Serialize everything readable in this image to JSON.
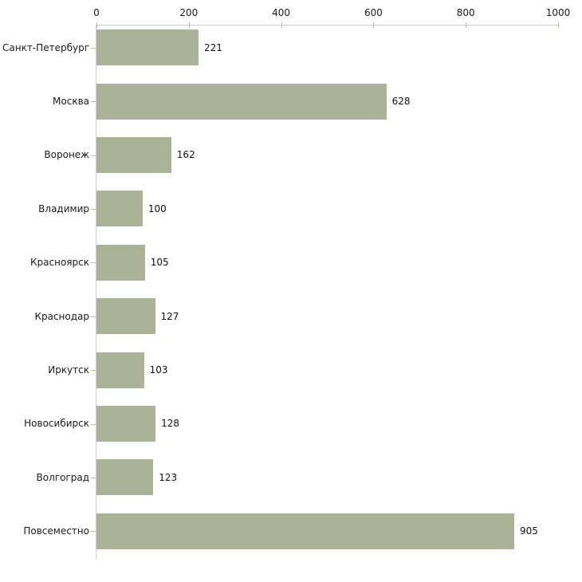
{
  "chart_data": {
    "type": "bar",
    "orientation": "horizontal",
    "title": "",
    "xlabel": "",
    "ylabel": "",
    "categories": [
      "Санкт-Петербург",
      "Москва",
      "Воронеж",
      "Владимир",
      "Красноярск",
      "Краснодар",
      "Иркутск",
      "Новосибирск",
      "Волгоград",
      "Повсеместно"
    ],
    "values": [
      221,
      628,
      162,
      100,
      105,
      127,
      103,
      128,
      123,
      905
    ],
    "x_ticks": [
      0,
      200,
      400,
      600,
      800,
      1000
    ],
    "xlim": [
      0,
      1000
    ],
    "grid": false,
    "legend_position": "none",
    "axis_position": "top",
    "colors": {
      "bar": "#aab298",
      "axis_line": "#cccccc",
      "tick_mark": "#bfc08c",
      "text": "#1a1a1a",
      "background": "#ffffff"
    }
  }
}
